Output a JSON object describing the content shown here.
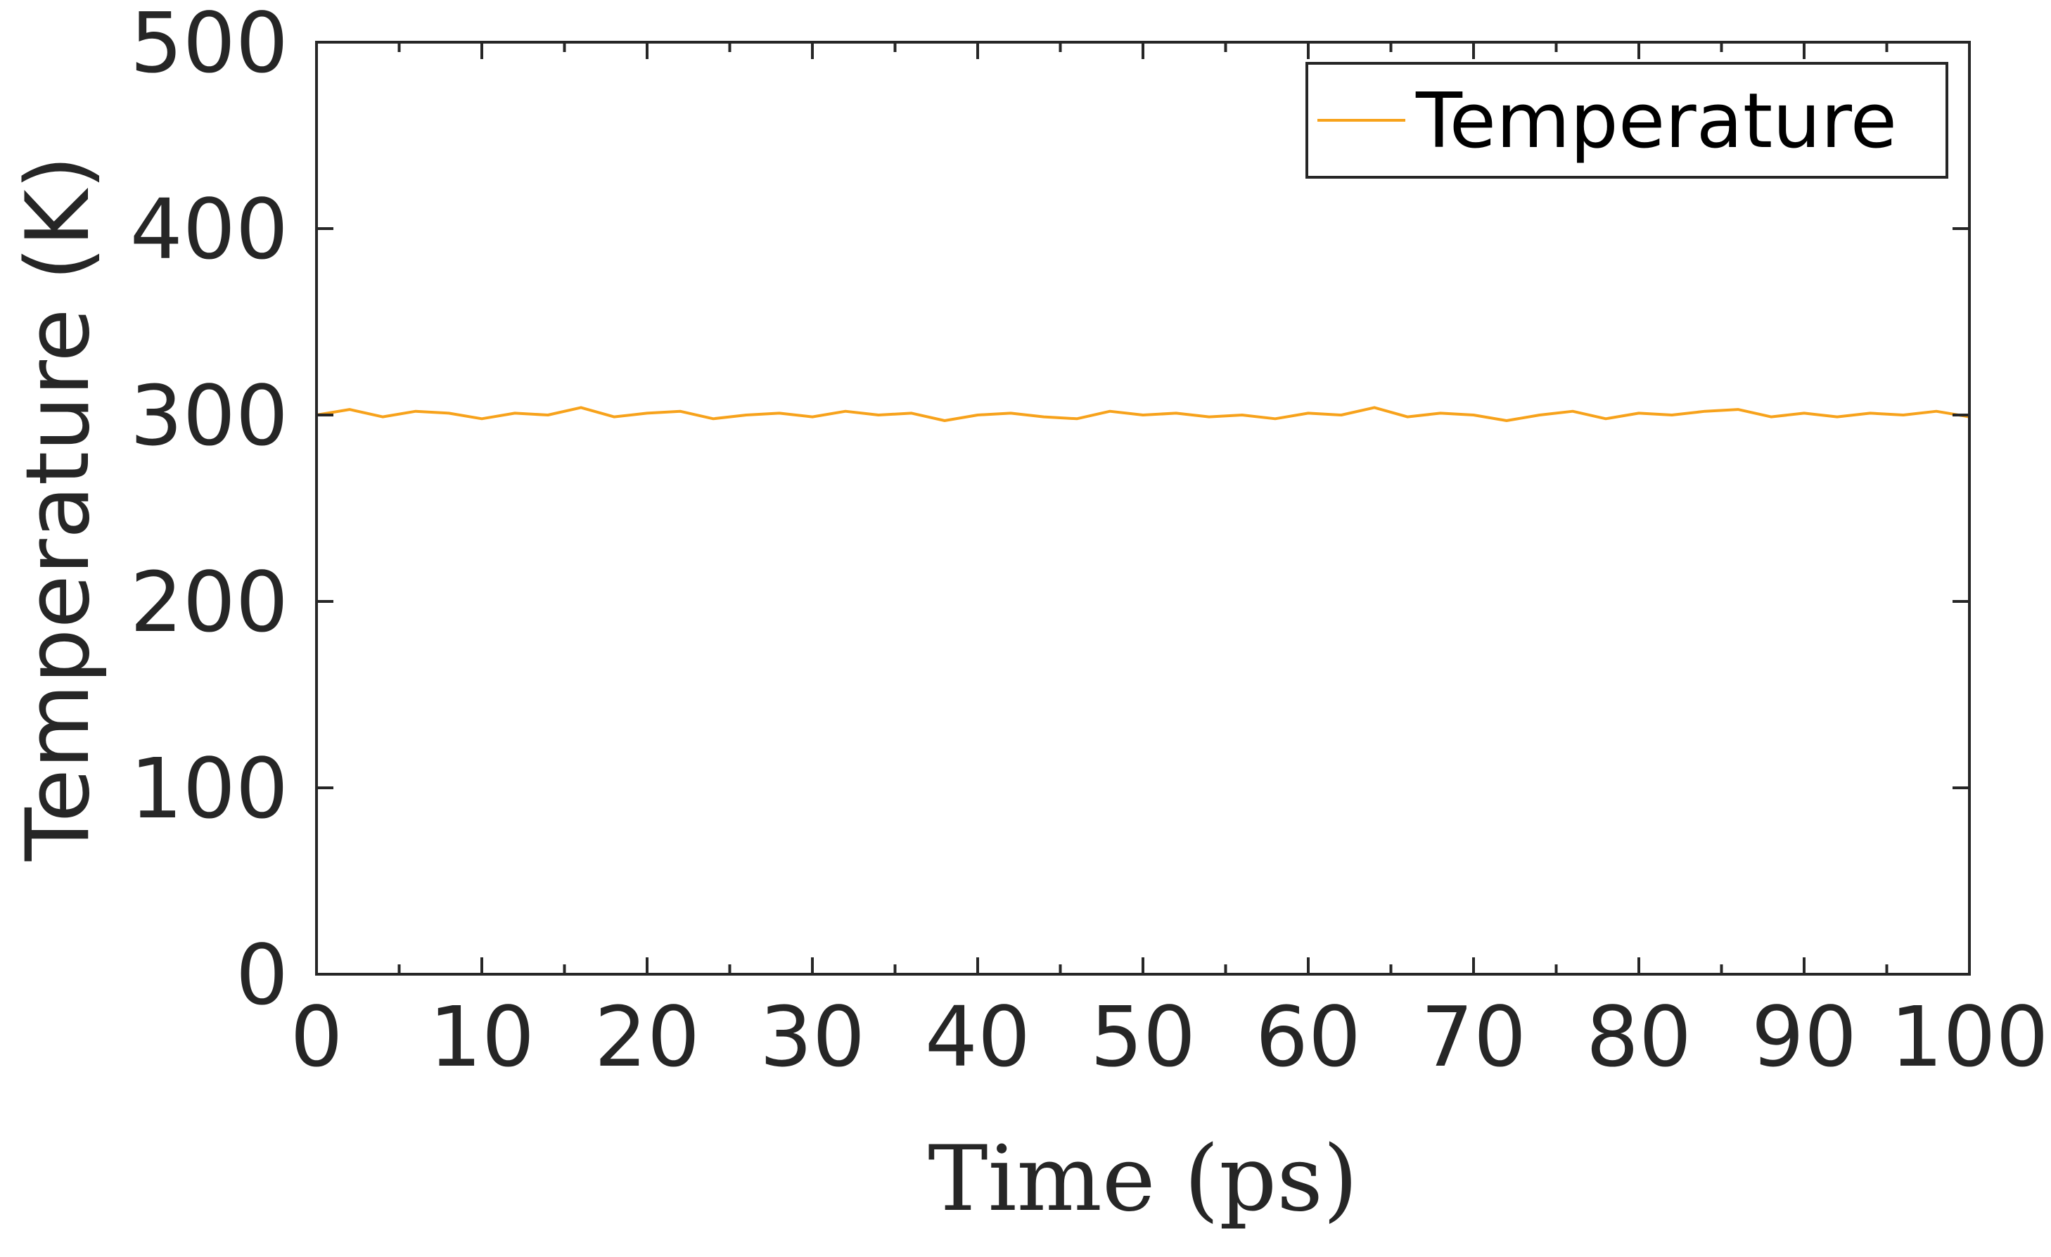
{
  "chart_data": {
    "type": "line",
    "title": "",
    "xlabel": "Time (ps)",
    "ylabel": "Temperature (K)",
    "xlim": [
      0,
      100
    ],
    "ylim": [
      0,
      500
    ],
    "xticks": [
      0,
      10,
      20,
      30,
      40,
      50,
      60,
      70,
      80,
      90,
      100
    ],
    "yticks": [
      0,
      100,
      200,
      300,
      400,
      500
    ],
    "xtick_labels": [
      "0",
      "10",
      "20",
      "30",
      "40",
      "50",
      "60",
      "70",
      "80",
      "90",
      "100"
    ],
    "ytick_labels": [
      "0",
      "100",
      "200",
      "300",
      "400",
      "500"
    ],
    "grid": false,
    "legend": {
      "position": "top-right",
      "entries": [
        "Temperature"
      ]
    },
    "series": [
      {
        "name": "Temperature",
        "color": "#F7A21B",
        "x": [
          0,
          2,
          4,
          6,
          8,
          10,
          12,
          14,
          16,
          18,
          20,
          22,
          24,
          26,
          28,
          30,
          32,
          34,
          36,
          38,
          40,
          42,
          44,
          46,
          48,
          50,
          52,
          54,
          56,
          58,
          60,
          62,
          64,
          66,
          68,
          70,
          72,
          74,
          76,
          78,
          80,
          82,
          84,
          86,
          88,
          90,
          92,
          94,
          96,
          98,
          100
        ],
        "y": [
          300,
          303,
          299,
          302,
          301,
          298,
          301,
          300,
          304,
          299,
          301,
          302,
          298,
          300,
          301,
          299,
          302,
          300,
          301,
          297,
          300,
          301,
          299,
          298,
          302,
          300,
          301,
          299,
          300,
          298,
          301,
          300,
          304,
          299,
          301,
          300,
          297,
          300,
          302,
          298,
          301,
          300,
          302,
          303,
          299,
          301,
          299,
          301,
          300,
          302,
          299
        ]
      }
    ]
  }
}
